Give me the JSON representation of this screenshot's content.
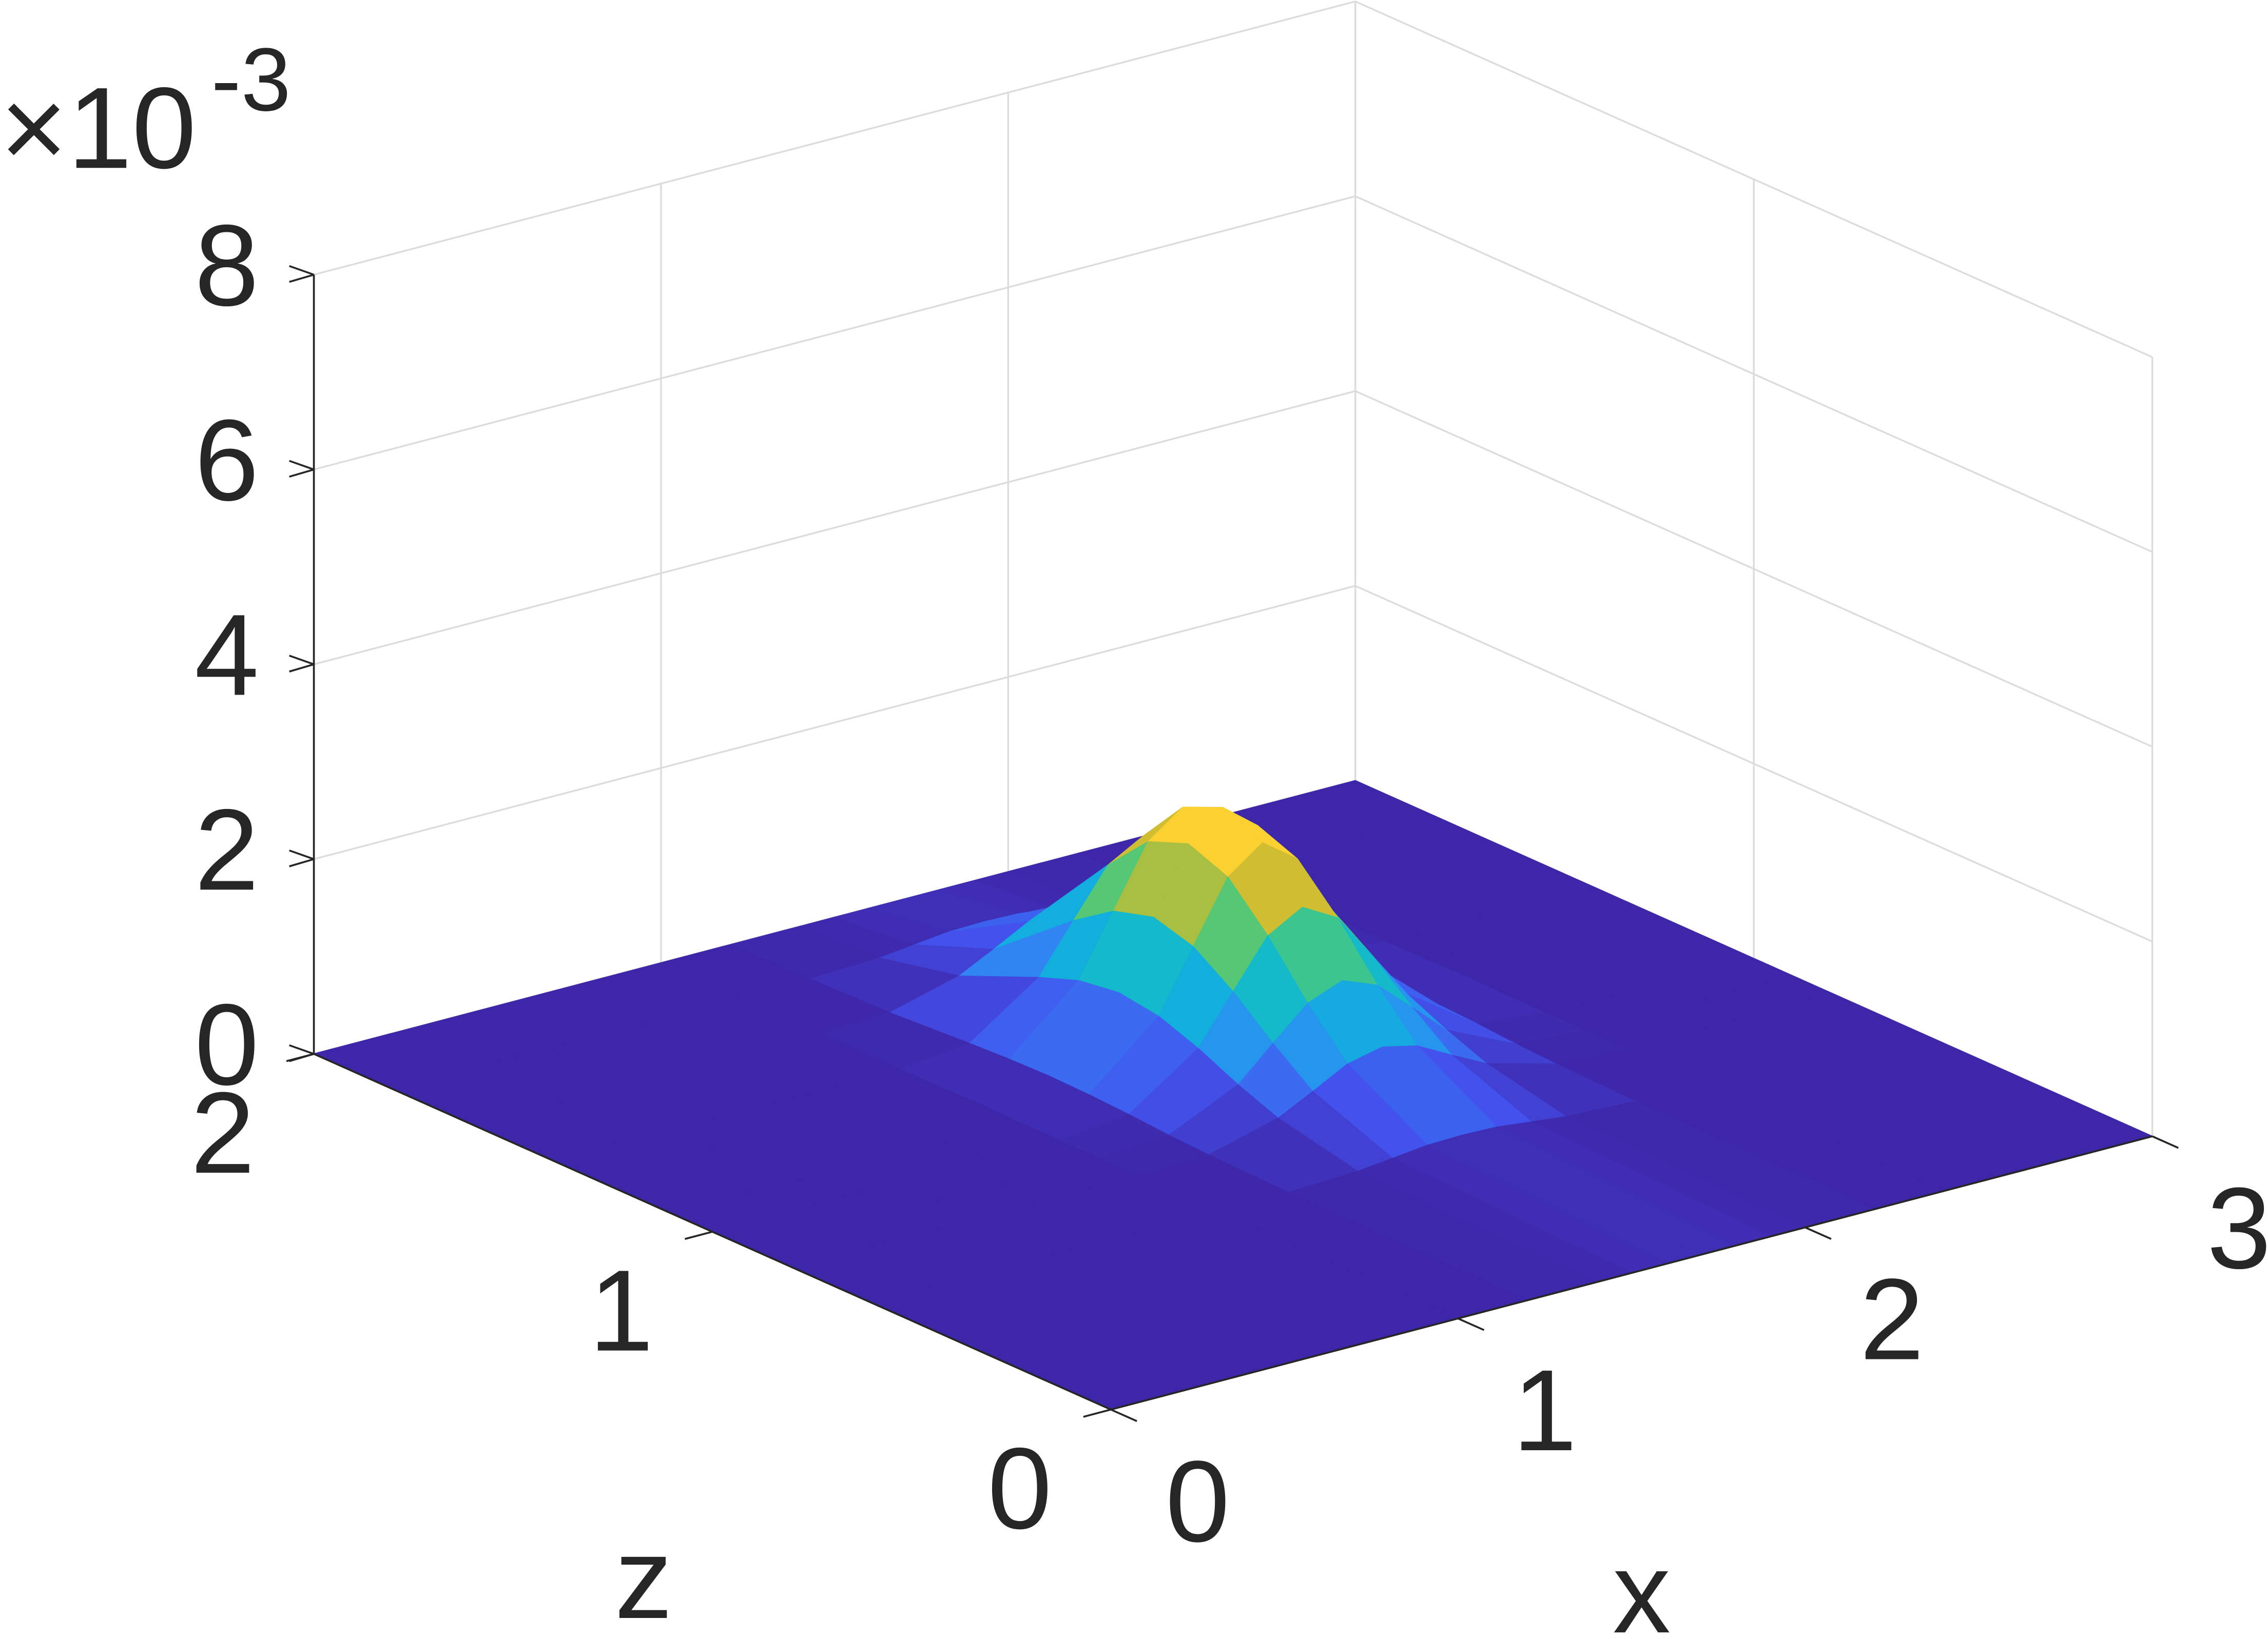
{
  "chart_data": {
    "type": "surface",
    "x_label": "x",
    "z_label": "z",
    "exponent_base": "×10",
    "exponent": "-3",
    "x": [
      0,
      1.0,
      1.2,
      1.4,
      1.5,
      1.6,
      1.7,
      1.8,
      1.9,
      2.0,
      2.2,
      2.4,
      3
    ],
    "z": [
      0,
      0.6,
      0.8,
      0.9,
      1.0,
      1.1,
      1.2,
      1.3,
      1.4,
      1.6,
      1.8,
      2
    ],
    "values": [
      [
        0,
        0,
        0,
        0,
        0,
        0,
        0,
        0,
        0,
        0,
        0,
        0,
        0
      ],
      [
        0,
        0,
        0.01,
        0.04,
        0.08,
        0.12,
        0.13,
        0.12,
        0.08,
        0.04,
        0.01,
        0,
        0
      ],
      [
        0,
        0,
        0.03,
        0.22,
        0.4,
        0.59,
        0.67,
        0.59,
        0.4,
        0.22,
        0.03,
        0,
        0
      ],
      [
        0,
        0,
        0.05,
        0.38,
        0.71,
        1.03,
        1.17,
        1.03,
        0.71,
        0.38,
        0.05,
        0,
        0
      ],
      [
        0,
        0,
        0.08,
        0.57,
        1.06,
        1.54,
        1.74,
        1.54,
        1.06,
        0.57,
        0.08,
        0,
        0
      ],
      [
        0,
        0,
        0.1,
        0.72,
        1.34,
        1.96,
        2.22,
        1.96,
        1.34,
        0.72,
        0.1,
        0,
        0
      ],
      [
        0,
        0.01,
        0.11,
        0.78,
        1.46,
        2.12,
        2.4,
        2.12,
        1.46,
        0.78,
        0.11,
        0.01,
        0
      ],
      [
        0,
        0,
        0.1,
        0.72,
        1.34,
        1.96,
        2.22,
        1.96,
        1.34,
        0.72,
        0.1,
        0,
        0
      ],
      [
        0,
        0,
        0.08,
        0.57,
        1.06,
        1.54,
        1.74,
        1.54,
        1.06,
        0.57,
        0.08,
        0,
        0
      ],
      [
        0,
        0,
        0.03,
        0.22,
        0.4,
        0.59,
        0.67,
        0.59,
        0.4,
        0.22,
        0.03,
        0,
        0
      ],
      [
        0,
        0,
        0.01,
        0.04,
        0.08,
        0.12,
        0.13,
        0.12,
        0.08,
        0.04,
        0.01,
        0,
        0
      ],
      [
        0,
        0,
        0,
        0,
        0,
        0,
        0,
        0,
        0,
        0,
        0,
        0,
        0
      ]
    ],
    "xlim": [
      0,
      3
    ],
    "xticks": [
      0,
      1,
      2,
      3
    ],
    "zlim": [
      0,
      2
    ],
    "zticks": [
      0,
      1,
      2
    ],
    "ylim": [
      0,
      8
    ],
    "yticks": [
      0,
      2,
      4,
      6,
      8
    ],
    "grid": true,
    "colormap": [
      "#3e26a8",
      "#4352ee",
      "#2d8cf2",
      "#13aedf",
      "#14c0bd",
      "#5cc86e",
      "#c4bc30",
      "#fcc13a",
      "#f9fb15"
    ]
  }
}
